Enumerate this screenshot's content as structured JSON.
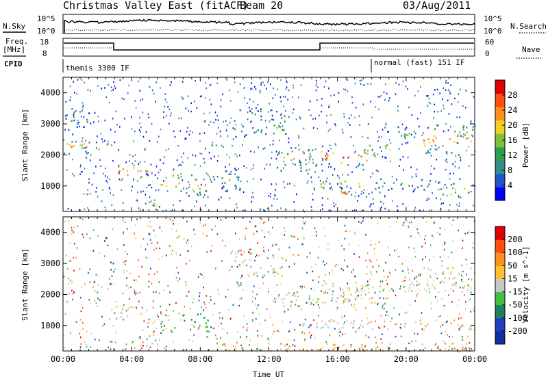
{
  "header": {
    "station": "Christmas Valley East (fitACF)",
    "beam": "Beam 20",
    "date": "03/Aug/2011"
  },
  "top_panels": {
    "nsky_label": "N.Sky",
    "nsearch_label": "N.Search",
    "nsky_ticks": [
      "10^5",
      "10^0"
    ],
    "nsearch_ticks": [
      "10^5",
      "10^0"
    ],
    "freq_label_1": "Freq.",
    "freq_label_2": "[MHz]",
    "freq_ticks": [
      "18",
      "8"
    ],
    "nave_label": "Nave",
    "nave_ticks": [
      "60",
      "0"
    ],
    "cpid_label": "CPID",
    "cpid_segments": [
      "themis 3300 IF",
      "normal (fast) 151 IF"
    ]
  },
  "chart_data": [
    {
      "type": "heatmap",
      "name": "power",
      "ylabel": "Slant Range [km]",
      "yticks": [
        "4000",
        "3000",
        "2000",
        "1000"
      ],
      "ylim": [
        180,
        4500
      ],
      "xlim_hours": [
        0,
        24
      ],
      "colorbar": {
        "label": "Power [dB]",
        "ticks": [
          "28",
          "24",
          "20",
          "16",
          "12",
          "8",
          "4"
        ],
        "colors": [
          "#0000ff",
          "#1e56c8",
          "#2f8f88",
          "#2f9f4f",
          "#80c040",
          "#f0d020",
          "#ff9020",
          "#ff5010",
          "#e00000"
        ]
      },
      "bands": [
        {
          "t0": 0.0,
          "t1": 2.8,
          "r0": 2050,
          "r1": 2450,
          "strength": 0.85
        },
        {
          "t0": 0.0,
          "t1": 1.6,
          "r0": 2800,
          "r1": 3600,
          "strength": 0.25
        },
        {
          "t0": 1.0,
          "t1": 1.6,
          "r0": 700,
          "r1": 950,
          "strength": 0.7
        },
        {
          "t0": 2.9,
          "t1": 5.0,
          "r0": 1150,
          "r1": 1700,
          "strength": 0.9
        },
        {
          "t0": 4.2,
          "t1": 5.4,
          "r0": 200,
          "r1": 600,
          "strength": 0.55
        },
        {
          "t0": 5.6,
          "t1": 8.5,
          "r0": 700,
          "r1": 1450,
          "strength": 0.7
        },
        {
          "t0": 8.5,
          "t1": 10.3,
          "r0": 850,
          "r1": 1600,
          "strength": 0.35
        },
        {
          "t0": 9.8,
          "t1": 13.0,
          "r0": 2600,
          "r1": 3500,
          "strength": 0.45
        },
        {
          "t0": 12.5,
          "t1": 15.0,
          "r0": 1500,
          "r1": 2300,
          "strength": 0.6
        },
        {
          "t0": 14.0,
          "t1": 17.5,
          "r0": 950,
          "r1": 1200,
          "strength": 0.65
        },
        {
          "t0": 15.0,
          "t1": 17.8,
          "r0": 1700,
          "r1": 2200,
          "strength": 0.95
        },
        {
          "t0": 16.0,
          "t1": 17.7,
          "r0": 650,
          "r1": 950,
          "strength": 0.85
        },
        {
          "t0": 17.5,
          "t1": 19.2,
          "r0": 1900,
          "r1": 2400,
          "strength": 0.7
        },
        {
          "t0": 19.5,
          "t1": 21.0,
          "r0": 2400,
          "r1": 3000,
          "strength": 0.45
        },
        {
          "t0": 21.0,
          "t1": 24.0,
          "r0": 2000,
          "r1": 3000,
          "strength": 0.7
        },
        {
          "t0": 22.0,
          "t1": 24.0,
          "r0": 650,
          "r1": 1100,
          "strength": 0.7
        },
        {
          "t0": 18.0,
          "t1": 22.0,
          "r0": 900,
          "r1": 1250,
          "strength": 0.35
        }
      ]
    },
    {
      "type": "heatmap",
      "name": "velocity",
      "ylabel": "Slant Range [km]",
      "yticks": [
        "4000",
        "3000",
        "2000",
        "1000"
      ],
      "ylim": [
        180,
        4500
      ],
      "xlim_hours": [
        0,
        24
      ],
      "xticks": [
        "00:00",
        "04:00",
        "08:00",
        "12:00",
        "16:00",
        "20:00",
        "00:00"
      ],
      "xlabel": "Time UT",
      "colorbar": {
        "label": "Velocity [m s^-1]",
        "ticks": [
          "200",
          "100",
          "50",
          "15",
          "-15",
          "-50",
          "-100",
          "-200"
        ],
        "colors": [
          "#1030a0",
          "#2040c0",
          "#208060",
          "#40c040",
          "#c8c8c8",
          "#ffc030",
          "#ff9020",
          "#ff5010",
          "#e00000"
        ]
      },
      "bands": [
        {
          "t0": 0.0,
          "t1": 2.8,
          "r0": 2050,
          "r1": 2450,
          "kind": "grey"
        },
        {
          "t0": 2.9,
          "t1": 5.0,
          "r0": 1150,
          "r1": 1700,
          "kind": "grey"
        },
        {
          "t0": 5.6,
          "t1": 8.5,
          "r0": 800,
          "r1": 1450,
          "kind": "green"
        },
        {
          "t0": 4.0,
          "t1": 5.6,
          "r0": 400,
          "r1": 700,
          "kind": "green"
        },
        {
          "t0": 9.8,
          "t1": 13.0,
          "r0": 2600,
          "r1": 3500,
          "kind": "grey"
        },
        {
          "t0": 12.5,
          "t1": 15.0,
          "r0": 1500,
          "r1": 2300,
          "kind": "grey"
        },
        {
          "t0": 15.0,
          "t1": 19.2,
          "r0": 1700,
          "r1": 2400,
          "kind": "grey"
        },
        {
          "t0": 14.0,
          "t1": 22.0,
          "r0": 900,
          "r1": 1200,
          "kind": "grey"
        },
        {
          "t0": 19.5,
          "t1": 24.0,
          "r0": 2100,
          "r1": 3000,
          "kind": "grey"
        },
        {
          "t0": 22.0,
          "t1": 24.0,
          "r0": 650,
          "r1": 1100,
          "kind": "grey"
        },
        {
          "t0": 9.0,
          "t1": 24.0,
          "r0": 180,
          "r1": 450,
          "kind": "orange"
        }
      ]
    }
  ]
}
